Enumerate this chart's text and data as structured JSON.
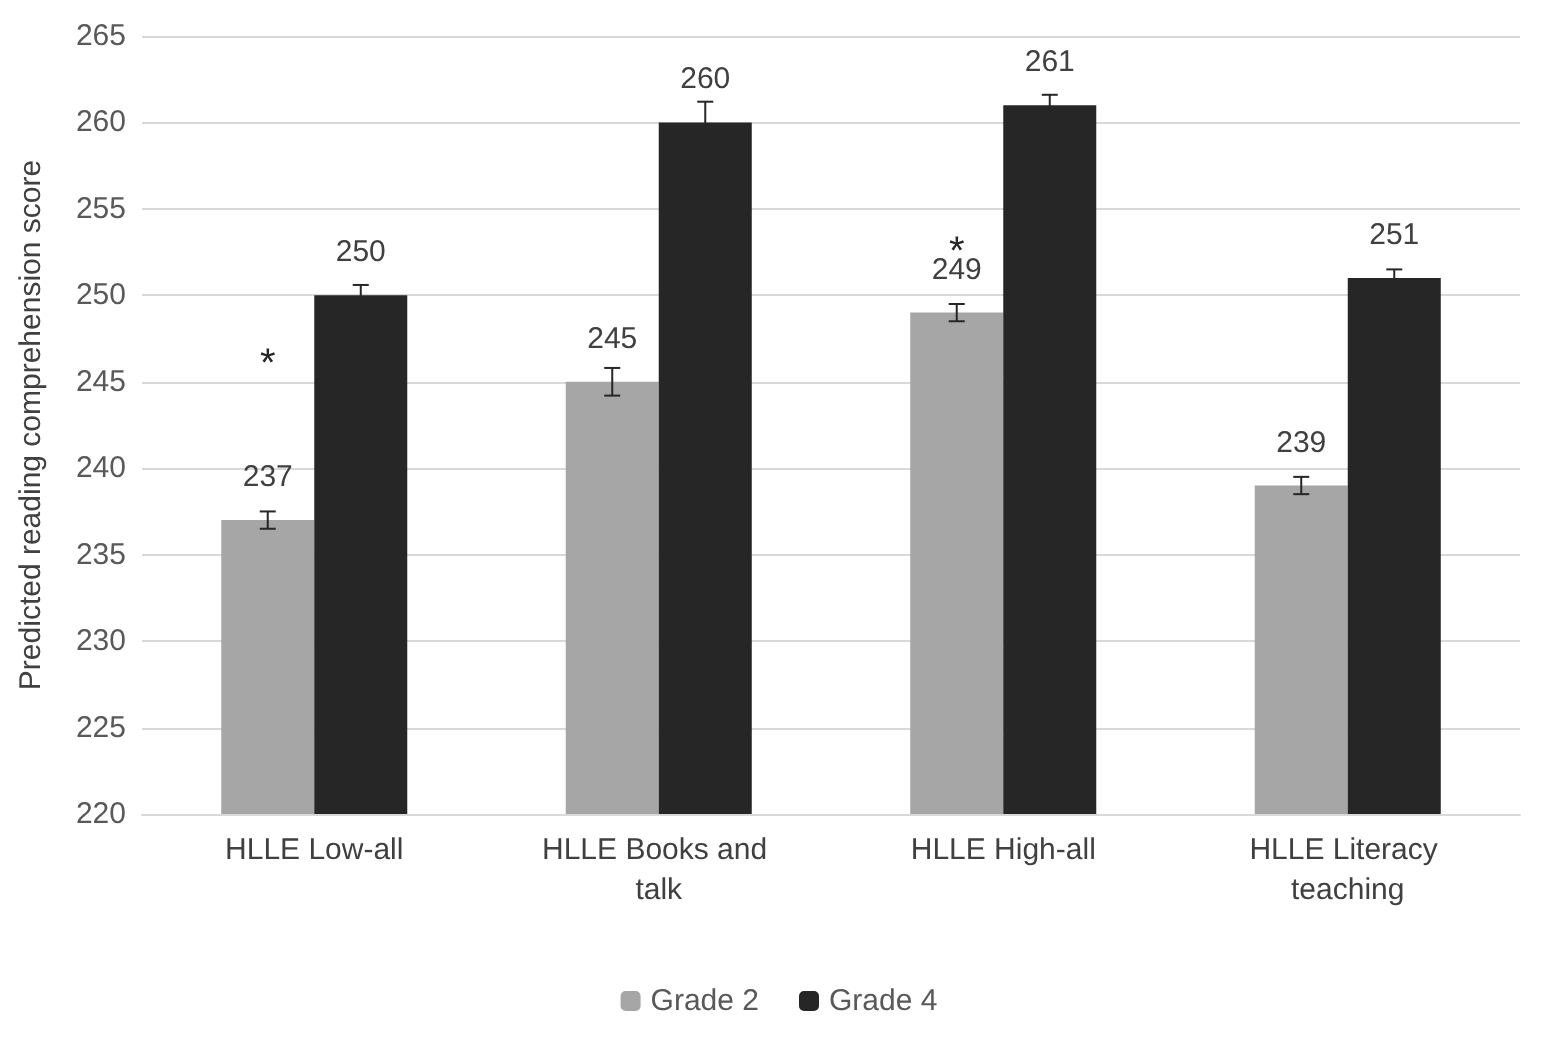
{
  "chart_data": {
    "type": "bar",
    "ylabel": "Predicted reading comprehension score",
    "categories": [
      "HLLE Low-all",
      "HLLE Books and talk",
      "HLLE High-all",
      "HLLE Literacy teaching"
    ],
    "series": [
      {
        "name": "Grade 2",
        "color": "#a6a6a6",
        "values": [
          237,
          245,
          249,
          239
        ],
        "errors": [
          0.5,
          0.8,
          0.5,
          0.5
        ]
      },
      {
        "name": "Grade 4",
        "color": "#262626",
        "values": [
          250,
          260,
          261,
          251
        ],
        "errors": [
          0.6,
          1.2,
          0.6,
          0.5
        ]
      }
    ],
    "ylim": [
      220,
      265
    ],
    "yticks": [
      220,
      225,
      230,
      235,
      240,
      245,
      250,
      255,
      260,
      265
    ],
    "grid": "y",
    "legend": "bottom",
    "data_labels": true,
    "annotations": [
      {
        "text": "*",
        "x": "HLLE Low-all",
        "y": 246
      },
      {
        "text": "*",
        "x": "HLLE High-all",
        "y": 252.5
      }
    ]
  }
}
